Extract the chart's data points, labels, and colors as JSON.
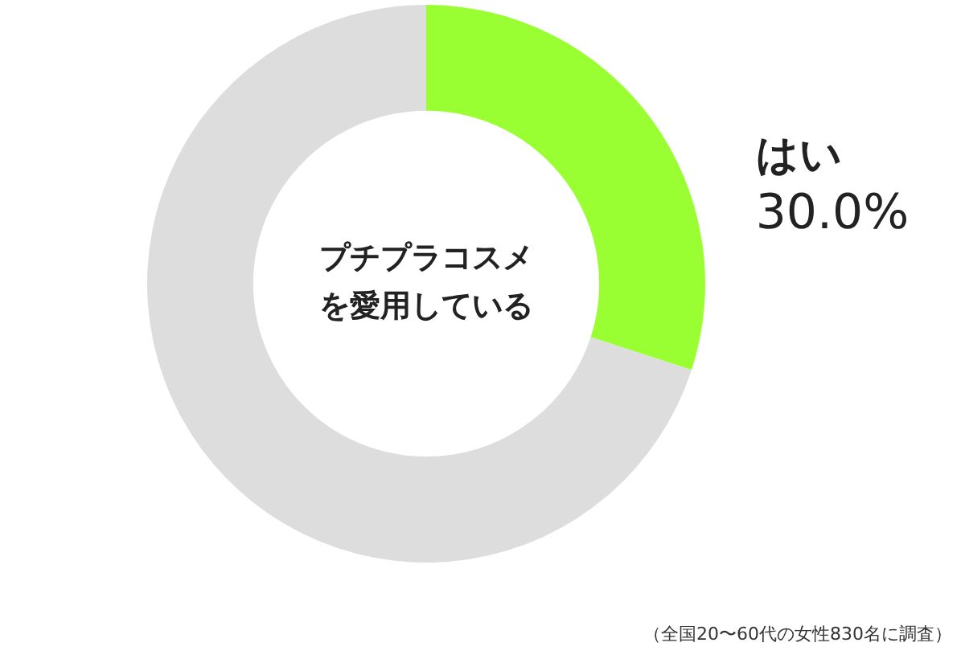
{
  "chart_data": {
    "type": "donut",
    "title": "プチプラコスメを愛用している",
    "categories": [
      "はい",
      null
    ],
    "values": [
      30,
      70
    ],
    "colors": [
      "#99ff33",
      "#dddddd"
    ],
    "value_labels": [
      "30.0%",
      null
    ],
    "legend": false,
    "annotations": [
      "（全国20〜60代の女性830名に調査）"
    ]
  }
}
